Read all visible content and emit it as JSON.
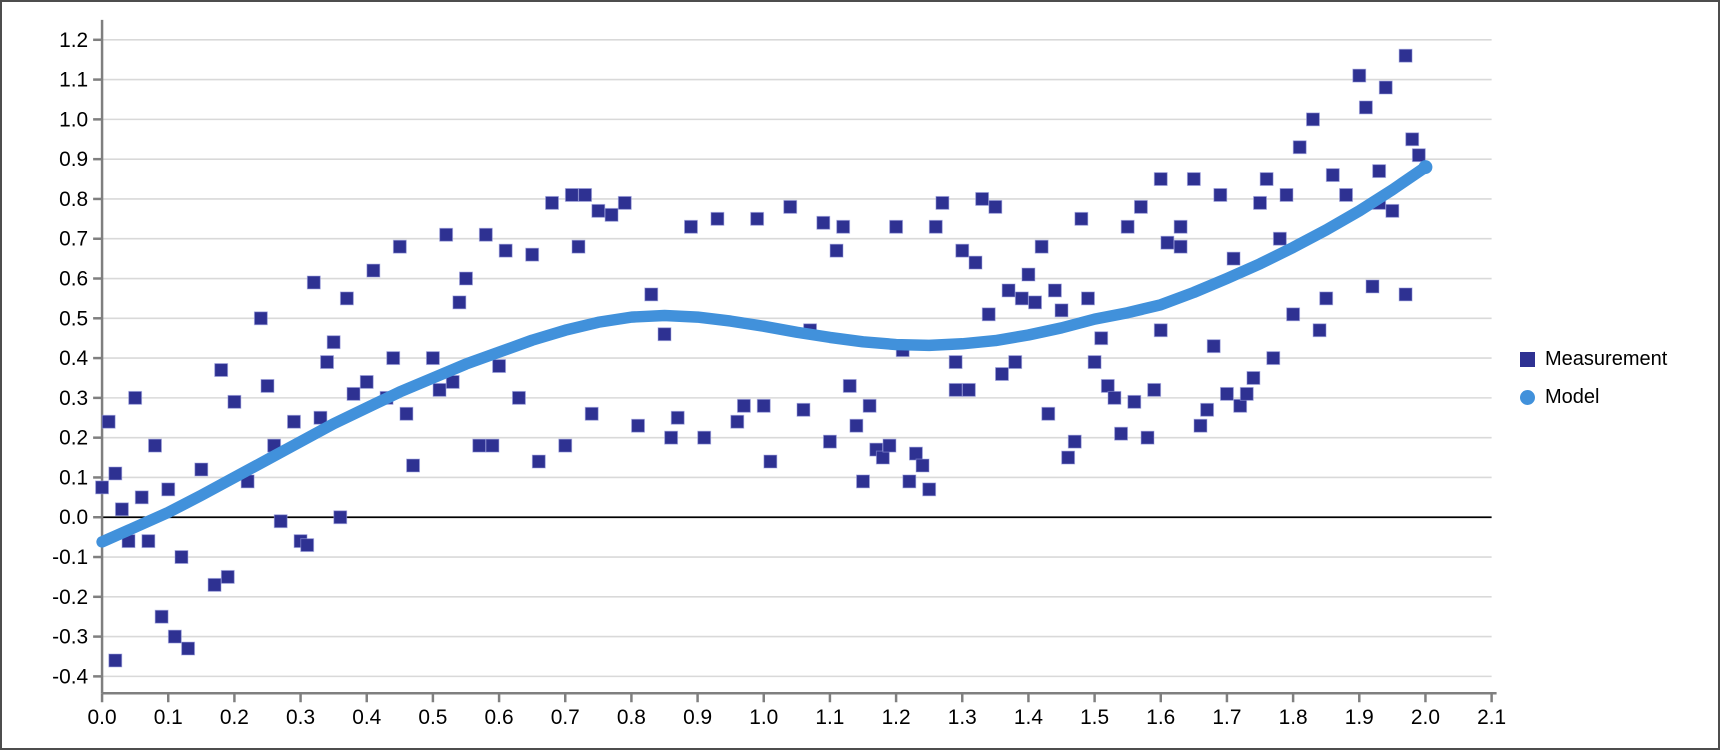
{
  "window": {
    "background": "#ffffff",
    "border_color": "#4d4d4d"
  },
  "legend": {
    "position": "right-middle",
    "entries": [
      {
        "label": "Measurement",
        "marker": "square",
        "color": "#2E3192"
      },
      {
        "label": "Model",
        "marker": "circle",
        "color": "#4191DB"
      }
    ]
  },
  "chart_data": {
    "type": "scatter",
    "title": "",
    "xlabel": "",
    "ylabel": "",
    "xlim": [
      0.0,
      2.1
    ],
    "ylim": [
      -0.45,
      1.26
    ],
    "x_ticks": [
      0.0,
      0.1,
      0.2,
      0.3,
      0.4,
      0.5,
      0.6,
      0.7,
      0.8,
      0.9,
      1.0,
      1.1,
      1.2,
      1.3,
      1.4,
      1.5,
      1.6,
      1.7,
      1.8,
      1.9,
      2.0,
      2.1
    ],
    "y_ticks": [
      -0.4,
      -0.3,
      -0.2,
      -0.1,
      0.0,
      0.1,
      0.2,
      0.3,
      0.4,
      0.5,
      0.6,
      0.7,
      0.8,
      0.9,
      1.0,
      1.1,
      1.2
    ],
    "grid": "horizontal",
    "gridline_color": "#d9d9d9",
    "zero_line_color": "#000000",
    "axis_color": "#7f7f7f",
    "legend_position": "right",
    "series": [
      {
        "name": "Measurement",
        "type": "scatter",
        "marker": "square",
        "color": "#2E3192",
        "points": [
          [
            0.0,
            0.075
          ],
          [
            0.01,
            0.24
          ],
          [
            0.02,
            0.11
          ],
          [
            0.02,
            -0.36
          ],
          [
            0.03,
            0.02
          ],
          [
            0.04,
            -0.06
          ],
          [
            0.05,
            0.3
          ],
          [
            0.06,
            0.05
          ],
          [
            0.07,
            -0.06
          ],
          [
            0.08,
            0.18
          ],
          [
            0.09,
            -0.25
          ],
          [
            0.1,
            0.07
          ],
          [
            0.11,
            -0.3
          ],
          [
            0.12,
            -0.1
          ],
          [
            0.13,
            -0.33
          ],
          [
            0.15,
            0.12
          ],
          [
            0.17,
            -0.17
          ],
          [
            0.18,
            0.37
          ],
          [
            0.19,
            -0.15
          ],
          [
            0.2,
            0.29
          ],
          [
            0.22,
            0.09
          ],
          [
            0.24,
            0.5
          ],
          [
            0.25,
            0.33
          ],
          [
            0.26,
            0.18
          ],
          [
            0.27,
            -0.01
          ],
          [
            0.29,
            0.24
          ],
          [
            0.3,
            -0.06
          ],
          [
            0.31,
            -0.07
          ],
          [
            0.32,
            0.59
          ],
          [
            0.33,
            0.25
          ],
          [
            0.34,
            0.39
          ],
          [
            0.35,
            0.44
          ],
          [
            0.36,
            0.0
          ],
          [
            0.37,
            0.55
          ],
          [
            0.38,
            0.31
          ],
          [
            0.4,
            0.34
          ],
          [
            0.41,
            0.62
          ],
          [
            0.43,
            0.3
          ],
          [
            0.44,
            0.4
          ],
          [
            0.45,
            0.68
          ],
          [
            0.46,
            0.26
          ],
          [
            0.47,
            0.13
          ],
          [
            0.5,
            0.4
          ],
          [
            0.51,
            0.32
          ],
          [
            0.52,
            0.71
          ],
          [
            0.53,
            0.34
          ],
          [
            0.54,
            0.54
          ],
          [
            0.55,
            0.6
          ],
          [
            0.57,
            0.18
          ],
          [
            0.58,
            0.71
          ],
          [
            0.59,
            0.18
          ],
          [
            0.6,
            0.38
          ],
          [
            0.61,
            0.67
          ],
          [
            0.63,
            0.3
          ],
          [
            0.65,
            0.66
          ],
          [
            0.66,
            0.14
          ],
          [
            0.68,
            0.79
          ],
          [
            0.7,
            0.18
          ],
          [
            0.71,
            0.81
          ],
          [
            0.72,
            0.68
          ],
          [
            0.73,
            0.81
          ],
          [
            0.74,
            0.26
          ],
          [
            0.75,
            0.77
          ],
          [
            0.77,
            0.76
          ],
          [
            0.79,
            0.79
          ],
          [
            0.81,
            0.23
          ],
          [
            0.83,
            0.56
          ],
          [
            0.85,
            0.46
          ],
          [
            0.86,
            0.2
          ],
          [
            0.87,
            0.25
          ],
          [
            0.89,
            0.73
          ],
          [
            0.91,
            0.2
          ],
          [
            0.93,
            0.75
          ],
          [
            0.96,
            0.24
          ],
          [
            0.97,
            0.28
          ],
          [
            0.99,
            0.75
          ],
          [
            1.0,
            0.28
          ],
          [
            1.01,
            0.14
          ],
          [
            1.04,
            0.78
          ],
          [
            1.06,
            0.27
          ],
          [
            1.07,
            0.47
          ],
          [
            1.09,
            0.74
          ],
          [
            1.1,
            0.19
          ],
          [
            1.11,
            0.67
          ],
          [
            1.12,
            0.73
          ],
          [
            1.13,
            0.33
          ],
          [
            1.14,
            0.23
          ],
          [
            1.15,
            0.09
          ],
          [
            1.16,
            0.28
          ],
          [
            1.17,
            0.17
          ],
          [
            1.18,
            0.15
          ],
          [
            1.19,
            0.18
          ],
          [
            1.2,
            0.73
          ],
          [
            1.21,
            0.42
          ],
          [
            1.22,
            0.09
          ],
          [
            1.23,
            0.16
          ],
          [
            1.24,
            0.13
          ],
          [
            1.25,
            0.07
          ],
          [
            1.26,
            0.73
          ],
          [
            1.27,
            0.79
          ],
          [
            1.29,
            0.32
          ],
          [
            1.29,
            0.39
          ],
          [
            1.3,
            0.67
          ],
          [
            1.31,
            0.32
          ],
          [
            1.32,
            0.64
          ],
          [
            1.33,
            0.8
          ],
          [
            1.34,
            0.51
          ],
          [
            1.35,
            0.78
          ],
          [
            1.36,
            0.36
          ],
          [
            1.37,
            0.57
          ],
          [
            1.38,
            0.39
          ],
          [
            1.39,
            0.55
          ],
          [
            1.4,
            0.61
          ],
          [
            1.41,
            0.54
          ],
          [
            1.42,
            0.68
          ],
          [
            1.43,
            0.26
          ],
          [
            1.44,
            0.57
          ],
          [
            1.45,
            0.52
          ],
          [
            1.46,
            0.15
          ],
          [
            1.47,
            0.19
          ],
          [
            1.48,
            0.75
          ],
          [
            1.49,
            0.55
          ],
          [
            1.5,
            0.39
          ],
          [
            1.51,
            0.45
          ],
          [
            1.52,
            0.33
          ],
          [
            1.53,
            0.3
          ],
          [
            1.54,
            0.21
          ],
          [
            1.55,
            0.73
          ],
          [
            1.56,
            0.29
          ],
          [
            1.57,
            0.78
          ],
          [
            1.58,
            0.2
          ],
          [
            1.59,
            0.32
          ],
          [
            1.6,
            0.85
          ],
          [
            1.6,
            0.47
          ],
          [
            1.61,
            0.69
          ],
          [
            1.63,
            0.68
          ],
          [
            1.63,
            0.73
          ],
          [
            1.65,
            0.85
          ],
          [
            1.66,
            0.23
          ],
          [
            1.67,
            0.27
          ],
          [
            1.68,
            0.43
          ],
          [
            1.69,
            0.81
          ],
          [
            1.7,
            0.31
          ],
          [
            1.71,
            0.65
          ],
          [
            1.72,
            0.28
          ],
          [
            1.73,
            0.31
          ],
          [
            1.74,
            0.35
          ],
          [
            1.75,
            0.79
          ],
          [
            1.76,
            0.85
          ],
          [
            1.77,
            0.4
          ],
          [
            1.78,
            0.7
          ],
          [
            1.79,
            0.81
          ],
          [
            1.8,
            0.51
          ],
          [
            1.81,
            0.93
          ],
          [
            1.83,
            1.0
          ],
          [
            1.84,
            0.47
          ],
          [
            1.85,
            0.55
          ],
          [
            1.86,
            0.86
          ],
          [
            1.88,
            0.81
          ],
          [
            1.9,
            1.11
          ],
          [
            1.91,
            1.03
          ],
          [
            1.92,
            0.58
          ],
          [
            1.93,
            0.87
          ],
          [
            1.93,
            0.79
          ],
          [
            1.94,
            1.08
          ],
          [
            1.95,
            0.77
          ],
          [
            1.97,
            0.56
          ],
          [
            1.97,
            1.16
          ],
          [
            1.98,
            0.95
          ],
          [
            1.99,
            0.91
          ]
        ]
      },
      {
        "name": "Model",
        "type": "line",
        "marker": "circle",
        "color": "#4191DB",
        "points": [
          [
            0.0,
            -0.062
          ],
          [
            0.05,
            -0.025
          ],
          [
            0.1,
            0.012
          ],
          [
            0.15,
            0.055
          ],
          [
            0.2,
            0.1
          ],
          [
            0.25,
            0.145
          ],
          [
            0.3,
            0.19
          ],
          [
            0.35,
            0.235
          ],
          [
            0.4,
            0.275
          ],
          [
            0.45,
            0.315
          ],
          [
            0.5,
            0.35
          ],
          [
            0.55,
            0.385
          ],
          [
            0.6,
            0.415
          ],
          [
            0.65,
            0.445
          ],
          [
            0.7,
            0.47
          ],
          [
            0.75,
            0.49
          ],
          [
            0.8,
            0.503
          ],
          [
            0.85,
            0.507
          ],
          [
            0.9,
            0.503
          ],
          [
            0.95,
            0.493
          ],
          [
            1.0,
            0.48
          ],
          [
            1.05,
            0.465
          ],
          [
            1.1,
            0.452
          ],
          [
            1.15,
            0.441
          ],
          [
            1.2,
            0.434
          ],
          [
            1.25,
            0.432
          ],
          [
            1.3,
            0.436
          ],
          [
            1.35,
            0.444
          ],
          [
            1.4,
            0.458
          ],
          [
            1.45,
            0.476
          ],
          [
            1.5,
            0.498
          ],
          [
            1.55,
            0.514
          ],
          [
            1.6,
            0.534
          ],
          [
            1.65,
            0.565
          ],
          [
            1.7,
            0.6
          ],
          [
            1.75,
            0.637
          ],
          [
            1.8,
            0.678
          ],
          [
            1.85,
            0.722
          ],
          [
            1.9,
            0.77
          ],
          [
            1.95,
            0.823
          ],
          [
            2.0,
            0.88
          ]
        ]
      }
    ]
  }
}
